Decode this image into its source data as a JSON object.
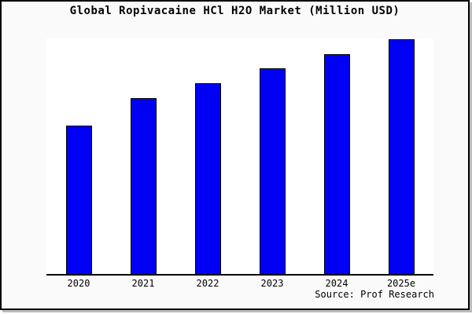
{
  "frame": {
    "background": "#fafafa",
    "border_color": "#000000",
    "shadow_color": "#bcbcbc"
  },
  "title": "Global Ropivacaine HCl H2O Market (Million USD)",
  "source_label": "Source: Prof Research",
  "chart_data": {
    "type": "bar",
    "title": "Global Ropivacaine HCl H2O Market (Million USD)",
    "categories": [
      "2020",
      "2021",
      "2022",
      "2023",
      "2024",
      "2025e"
    ],
    "values": [
      62.9,
      74.8,
      81.1,
      87.4,
      93.4,
      99.7
    ],
    "values_unit": "percent of plot height; chart displays no y-axis, gridlines, or numeric data labels",
    "xlabel": "",
    "ylabel": "",
    "y_axis_shown": false,
    "gridlines": false,
    "legend": "none",
    "bar_color": "#0000f5",
    "bar_border_color": "#000000",
    "plot_background": "#ffffff",
    "axis_line_color": "#000000",
    "source": "Source: Prof Research"
  }
}
